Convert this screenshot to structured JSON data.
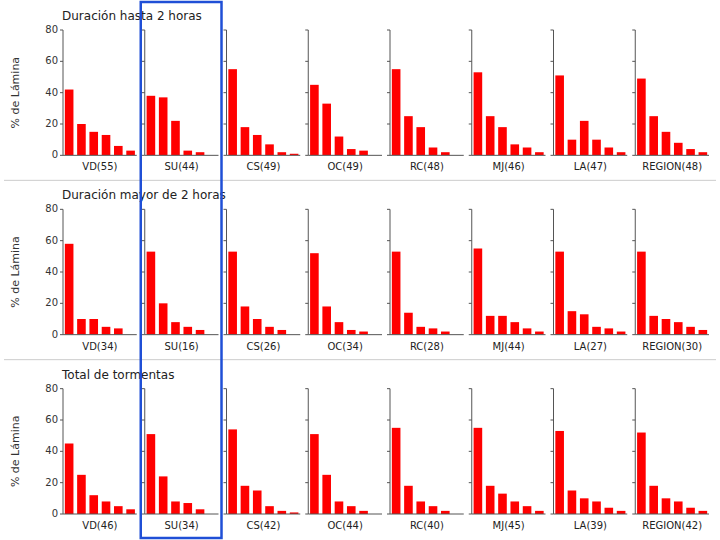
{
  "chart_data": [
    {
      "type": "bar",
      "title": "Duración hasta 2 horas",
      "ylabel": "% de Lámina",
      "xlabel": "VD(55)",
      "categories": [
        null,
        null,
        null,
        null,
        null,
        null
      ],
      "values": [
        42,
        20,
        15,
        13,
        6,
        3
      ],
      "color": "#FF0000",
      "ylim": [
        0,
        80
      ],
      "yticks": [
        0,
        20,
        40,
        60,
        80
      ]
    },
    {
      "type": "bar",
      "xlabel": "SU(44)",
      "categories": [
        null,
        null,
        null,
        null,
        null
      ],
      "values": [
        38,
        37,
        22,
        3,
        2
      ],
      "color": "#FF0000",
      "ylim": [
        0,
        80
      ],
      "yticks": [
        0,
        20,
        40,
        60,
        80
      ],
      "tick_labels": false
    },
    {
      "type": "bar",
      "xlabel": "CS(49)",
      "categories": [
        null,
        null,
        null,
        null,
        null,
        null
      ],
      "values": [
        55,
        18,
        13,
        7,
        2,
        1
      ],
      "color": "#FF0000",
      "ylim": [
        0,
        80
      ],
      "yticks": [
        0,
        20,
        40,
        60,
        80
      ],
      "tick_labels": false
    },
    {
      "type": "bar",
      "xlabel": "OC(49)",
      "categories": [
        null,
        null,
        null,
        null,
        null
      ],
      "values": [
        45,
        33,
        12,
        4,
        3
      ],
      "color": "#FF0000",
      "ylim": [
        0,
        80
      ],
      "yticks": [
        0,
        20,
        40,
        60,
        80
      ],
      "tick_labels": false
    },
    {
      "type": "bar",
      "xlabel": "RC(48)",
      "categories": [
        null,
        null,
        null,
        null,
        null
      ],
      "values": [
        55,
        25,
        18,
        5,
        2
      ],
      "color": "#FF0000",
      "ylim": [
        0,
        80
      ],
      "yticks": [
        0,
        20,
        40,
        60,
        80
      ],
      "tick_labels": false
    },
    {
      "type": "bar",
      "xlabel": "MJ(46)",
      "categories": [
        null,
        null,
        null,
        null,
        null,
        null
      ],
      "values": [
        53,
        25,
        18,
        7,
        5,
        2
      ],
      "color": "#FF0000",
      "ylim": [
        0,
        80
      ],
      "yticks": [
        0,
        20,
        40,
        60,
        80
      ],
      "tick_labels": false
    },
    {
      "type": "bar",
      "xlabel": "LA(47)",
      "categories": [
        null,
        null,
        null,
        null,
        null,
        null
      ],
      "values": [
        51,
        10,
        22,
        10,
        5,
        2
      ],
      "color": "#FF0000",
      "ylim": [
        0,
        80
      ],
      "yticks": [
        0,
        20,
        40,
        60,
        80
      ],
      "tick_labels": false
    },
    {
      "type": "bar",
      "xlabel": "REGION(48)",
      "categories": [
        null,
        null,
        null,
        null,
        null,
        null
      ],
      "values": [
        49,
        25,
        15,
        8,
        4,
        2
      ],
      "color": "#FF0000",
      "ylim": [
        0,
        80
      ],
      "yticks": [
        0,
        20,
        40,
        60,
        80
      ],
      "tick_labels": false
    },
    {
      "type": "bar",
      "title": "Duración mayor de 2 horas",
      "ylabel": "% de Lámina",
      "xlabel": "VD(34)",
      "categories": [
        null,
        null,
        null,
        null,
        null
      ],
      "values": [
        58,
        10,
        10,
        5,
        4
      ],
      "color": "#FF0000",
      "ylim": [
        0,
        80
      ],
      "yticks": [
        0,
        20,
        40,
        60,
        80
      ]
    },
    {
      "type": "bar",
      "xlabel": "SU(16)",
      "categories": [
        null,
        null,
        null,
        null,
        null
      ],
      "values": [
        53,
        20,
        8,
        5,
        3
      ],
      "color": "#FF0000",
      "ylim": [
        0,
        80
      ],
      "yticks": [
        0,
        20,
        40,
        60,
        80
      ],
      "tick_labels": false
    },
    {
      "type": "bar",
      "xlabel": "CS(26)",
      "categories": [
        null,
        null,
        null,
        null,
        null
      ],
      "values": [
        53,
        18,
        10,
        5,
        3
      ],
      "color": "#FF0000",
      "ylim": [
        0,
        80
      ],
      "yticks": [
        0,
        20,
        40,
        60,
        80
      ],
      "tick_labels": false
    },
    {
      "type": "bar",
      "xlabel": "OC(34)",
      "categories": [
        null,
        null,
        null,
        null,
        null
      ],
      "values": [
        52,
        18,
        8,
        3,
        2
      ],
      "color": "#FF0000",
      "ylim": [
        0,
        80
      ],
      "yticks": [
        0,
        20,
        40,
        60,
        80
      ],
      "tick_labels": false
    },
    {
      "type": "bar",
      "xlabel": "RC(28)",
      "categories": [
        null,
        null,
        null,
        null,
        null
      ],
      "values": [
        53,
        14,
        5,
        4,
        2
      ],
      "color": "#FF0000",
      "ylim": [
        0,
        80
      ],
      "yticks": [
        0,
        20,
        40,
        60,
        80
      ],
      "tick_labels": false
    },
    {
      "type": "bar",
      "xlabel": "MJ(44)",
      "categories": [
        null,
        null,
        null,
        null,
        null,
        null
      ],
      "values": [
        55,
        12,
        12,
        8,
        4,
        2
      ],
      "color": "#FF0000",
      "ylim": [
        0,
        80
      ],
      "yticks": [
        0,
        20,
        40,
        60,
        80
      ],
      "tick_labels": false
    },
    {
      "type": "bar",
      "xlabel": "LA(27)",
      "categories": [
        null,
        null,
        null,
        null,
        null,
        null
      ],
      "values": [
        53,
        15,
        13,
        5,
        4,
        2
      ],
      "color": "#FF0000",
      "ylim": [
        0,
        80
      ],
      "yticks": [
        0,
        20,
        40,
        60,
        80
      ],
      "tick_labels": false
    },
    {
      "type": "bar",
      "xlabel": "REGION(30)",
      "categories": [
        null,
        null,
        null,
        null,
        null,
        null
      ],
      "values": [
        53,
        12,
        10,
        8,
        5,
        3
      ],
      "color": "#FF0000",
      "ylim": [
        0,
        80
      ],
      "yticks": [
        0,
        20,
        40,
        60,
        80
      ],
      "tick_labels": false
    },
    {
      "type": "bar",
      "title": "Total de tormentas",
      "ylabel": "% de Lámina",
      "xlabel": "VD(46)",
      "categories": [
        null,
        null,
        null,
        null,
        null,
        null
      ],
      "values": [
        45,
        25,
        12,
        8,
        5,
        3
      ],
      "color": "#FF0000",
      "ylim": [
        0,
        80
      ],
      "yticks": [
        0,
        20,
        40,
        60,
        80
      ]
    },
    {
      "type": "bar",
      "xlabel": "SU(34)",
      "categories": [
        null,
        null,
        null,
        null,
        null
      ],
      "values": [
        51,
        24,
        8,
        7,
        3
      ],
      "color": "#FF0000",
      "ylim": [
        0,
        80
      ],
      "yticks": [
        0,
        20,
        40,
        60,
        80
      ],
      "tick_labels": false
    },
    {
      "type": "bar",
      "xlabel": "CS(42)",
      "categories": [
        null,
        null,
        null,
        null,
        null,
        null
      ],
      "values": [
        54,
        18,
        15,
        5,
        2,
        1
      ],
      "color": "#FF0000",
      "ylim": [
        0,
        80
      ],
      "yticks": [
        0,
        20,
        40,
        60,
        80
      ],
      "tick_labels": false
    },
    {
      "type": "bar",
      "xlabel": "OC(44)",
      "categories": [
        null,
        null,
        null,
        null,
        null
      ],
      "values": [
        51,
        25,
        8,
        5,
        2
      ],
      "color": "#FF0000",
      "ylim": [
        0,
        80
      ],
      "yticks": [
        0,
        20,
        40,
        60,
        80
      ],
      "tick_labels": false
    },
    {
      "type": "bar",
      "xlabel": "RC(40)",
      "categories": [
        null,
        null,
        null,
        null,
        null
      ],
      "values": [
        55,
        18,
        8,
        5,
        2
      ],
      "color": "#FF0000",
      "ylim": [
        0,
        80
      ],
      "yticks": [
        0,
        20,
        40,
        60,
        80
      ],
      "tick_labels": false
    },
    {
      "type": "bar",
      "xlabel": "MJ(45)",
      "categories": [
        null,
        null,
        null,
        null,
        null,
        null
      ],
      "values": [
        55,
        18,
        13,
        8,
        5,
        2
      ],
      "color": "#FF0000",
      "ylim": [
        0,
        80
      ],
      "yticks": [
        0,
        20,
        40,
        60,
        80
      ],
      "tick_labels": false
    },
    {
      "type": "bar",
      "xlabel": "LA(39)",
      "categories": [
        null,
        null,
        null,
        null,
        null,
        null
      ],
      "values": [
        53,
        15,
        10,
        8,
        4,
        2
      ],
      "color": "#FF0000",
      "ylim": [
        0,
        80
      ],
      "yticks": [
        0,
        20,
        40,
        60,
        80
      ],
      "tick_labels": false
    },
    {
      "type": "bar",
      "xlabel": "REGION(42)",
      "categories": [
        null,
        null,
        null,
        null,
        null,
        null
      ],
      "values": [
        52,
        18,
        10,
        8,
        4,
        2
      ],
      "color": "#FF0000",
      "ylim": [
        0,
        80
      ],
      "yticks": [
        0,
        20,
        40,
        60,
        80
      ],
      "tick_labels": false
    }
  ]
}
